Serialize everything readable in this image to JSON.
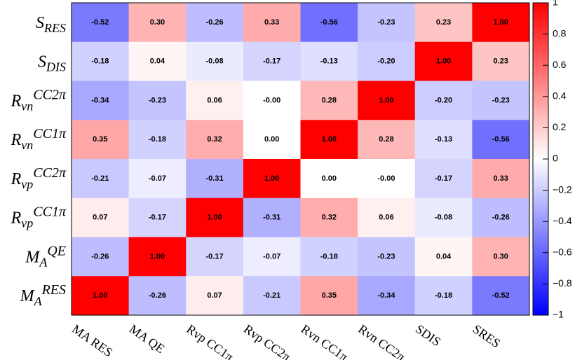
{
  "chart_data": {
    "type": "heatmap",
    "x_categories": [
      "MA RES",
      "MA QE",
      "Rvp CC1π",
      "Rvp CC2π",
      "Rvn CC1π",
      "Rvn CC2π",
      "SDIS",
      "SRES"
    ],
    "y_categories": [
      {
        "base": "S",
        "sub": "RES"
      },
      {
        "base": "S",
        "sub": "DIS"
      },
      {
        "base": "R",
        "sub": "vn",
        "sup": "CC2π"
      },
      {
        "base": "R",
        "sub": "vn",
        "sup": "CC1π"
      },
      {
        "base": "R",
        "sub": "vp",
        "sup": "CC2π"
      },
      {
        "base": "R",
        "sub": "vp",
        "sup": "CC1π"
      },
      {
        "base": "M",
        "sub": "A",
        "sup": "QE"
      },
      {
        "base": "M",
        "sub": "A",
        "sup": "RES"
      }
    ],
    "values": [
      [
        -0.52,
        0.3,
        -0.26,
        0.33,
        -0.56,
        -0.23,
        0.23,
        1.0
      ],
      [
        -0.18,
        0.04,
        -0.08,
        -0.17,
        -0.13,
        -0.2,
        1.0,
        0.23
      ],
      [
        -0.34,
        -0.23,
        0.06,
        0.0,
        0.28,
        1.0,
        -0.2,
        -0.23
      ],
      [
        0.35,
        -0.18,
        0.32,
        0.0,
        1.0,
        0.28,
        -0.13,
        -0.56
      ],
      [
        -0.21,
        -0.07,
        -0.31,
        1.0,
        0.0,
        0.0,
        -0.17,
        0.33
      ],
      [
        0.07,
        -0.17,
        1.0,
        -0.31,
        0.32,
        0.06,
        -0.08,
        -0.26
      ],
      [
        -0.26,
        1.0,
        -0.17,
        -0.07,
        -0.18,
        -0.23,
        0.04,
        0.3
      ],
      [
        1.0,
        -0.26,
        0.07,
        -0.21,
        0.35,
        -0.34,
        -0.18,
        -0.52
      ]
    ],
    "value_labels": [
      [
        "-0.52",
        "0.30",
        "-0.26",
        "0.33",
        "-0.56",
        "-0.23",
        "0.23",
        "1.00"
      ],
      [
        "-0.18",
        "0.04",
        "-0.08",
        "-0.17",
        "-0.13",
        "-0.20",
        "1.00",
        "0.23"
      ],
      [
        "-0.34",
        "-0.23",
        "0.06",
        "-0.00",
        "0.28",
        "1.00",
        "-0.20",
        "-0.23"
      ],
      [
        "0.35",
        "-0.18",
        "0.32",
        "0.00",
        "1.00",
        "0.28",
        "-0.13",
        "-0.56"
      ],
      [
        "-0.21",
        "-0.07",
        "-0.31",
        "1.00",
        "0.00",
        "-0.00",
        "-0.17",
        "0.33"
      ],
      [
        "0.07",
        "-0.17",
        "1.00",
        "-0.31",
        "0.32",
        "0.06",
        "-0.08",
        "-0.26"
      ],
      [
        "-0.26",
        "1.00",
        "-0.17",
        "-0.07",
        "-0.18",
        "-0.23",
        "0.04",
        "0.30"
      ],
      [
        "1.00",
        "-0.26",
        "0.07",
        "-0.21",
        "0.35",
        "-0.34",
        "-0.18",
        "-0.52"
      ]
    ],
    "colorscale": [
      "#0000ff",
      "#ffffff",
      "#ff0000"
    ],
    "zlim": [
      -1,
      1
    ],
    "zticks": [
      1,
      0.8,
      0.6,
      0.4,
      0.2,
      0,
      {
        "value": -0.2,
        "label": "−0.2"
      },
      {
        "value": -0.4,
        "label": "−0.4"
      },
      {
        "value": -0.6,
        "label": "−0.6"
      },
      {
        "value": -0.8,
        "label": "−0.8"
      },
      {
        "value": -1,
        "label": "−1"
      }
    ]
  }
}
